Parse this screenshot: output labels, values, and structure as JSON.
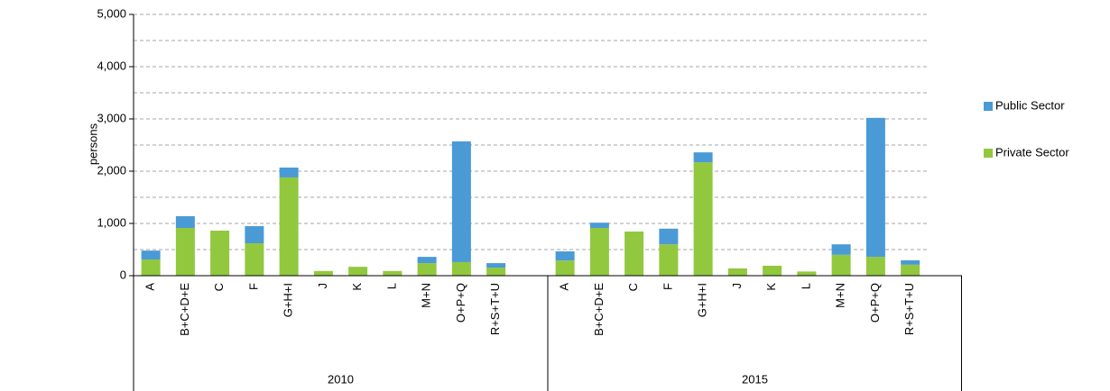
{
  "chart_data": {
    "type": "stacked-bar",
    "y_label": "persons",
    "groups": [
      "2010",
      "2015"
    ],
    "categories": [
      "A",
      "B+C+D+E",
      "C",
      "F",
      "G+H+I",
      "J",
      "K",
      "L",
      "M+N",
      "O+P+Q",
      "R+S+T+U",
      "A",
      "B+C+D+E",
      "C",
      "F",
      "G+H+I",
      "J",
      "K",
      "L",
      "M+N",
      "O+P+Q",
      "R+S+T+U"
    ],
    "series": [
      {
        "name": "Private Sector",
        "color": "#92c83e",
        "values": [
          310,
          914,
          862,
          620,
          1880,
          90,
          170,
          90,
          240,
          260,
          155,
          290,
          914,
          845,
          600,
          2170,
          140,
          190,
          80,
          400,
          360,
          210
        ]
      },
      {
        "name": "Public Sector",
        "color": "#4a9ad6",
        "values": [
          170,
          224,
          0,
          328,
          189,
          0,
          0,
          0,
          120,
          2310,
          85,
          175,
          100,
          0,
          300,
          190,
          0,
          0,
          0,
          200,
          2660,
          85
        ]
      }
    ],
    "ylim": [
      0,
      5000
    ],
    "yticks": [
      {
        "value": 0,
        "label": "0"
      },
      {
        "value": 1000,
        "label": "1,000"
      },
      {
        "value": 2000,
        "label": "2,000"
      },
      {
        "value": 3000,
        "label": "3,000"
      },
      {
        "value": 4000,
        "label": "4,000"
      },
      {
        "value": 5000,
        "label": "5,000"
      }
    ],
    "y_minor_ticks": [
      500,
      1500,
      2500,
      3500,
      4500
    ],
    "grid": true,
    "legend": "right"
  }
}
